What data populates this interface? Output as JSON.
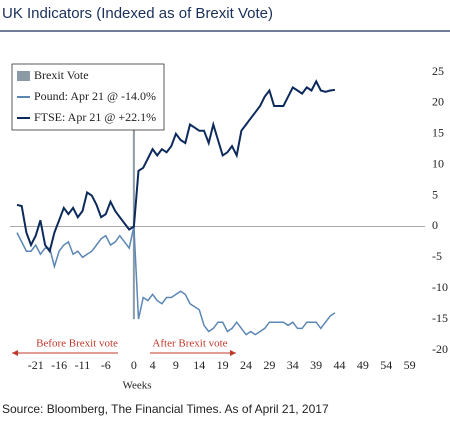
{
  "chart_data": {
    "type": "line",
    "title": "UK Indicators (Indexed as of Brexit Vote)",
    "x_label": "Weeks",
    "source": "Source: Bloomberg, The Financial Times. As of April 21, 2017",
    "annotations": [
      "Before Brexit vote",
      "After Brexit vote"
    ],
    "x": [
      -25,
      -24,
      -23,
      -22,
      -21,
      -20,
      -19,
      -18,
      -17,
      -16,
      -15,
      -14,
      -13,
      -12,
      -11,
      -10,
      -9,
      -8,
      -7,
      -6,
      -5,
      -4,
      -3,
      -2,
      -1,
      0,
      1,
      2,
      3,
      4,
      5,
      6,
      7,
      8,
      9,
      10,
      11,
      12,
      13,
      14,
      15,
      16,
      17,
      18,
      19,
      20,
      21,
      22,
      23,
      24,
      25,
      26,
      27,
      28,
      29,
      30,
      31,
      32,
      33,
      34,
      35,
      36,
      37,
      38,
      39,
      40,
      41,
      42,
      43
    ],
    "series": [
      {
        "name": "Brexit Vote",
        "color": "#8c9aa5",
        "vline_x": 0
      },
      {
        "name": "Pound: Apr 21 @ -14.0%",
        "color": "#5b87b5",
        "values": [
          -1,
          -2.5,
          -4,
          -4,
          -3,
          -4.5,
          -3.5,
          -3.5,
          -6.5,
          -4,
          -3,
          -2.5,
          -4.5,
          -4,
          -5,
          -4.5,
          -4,
          -3,
          -2,
          -1.5,
          -3,
          -2.5,
          -1.5,
          -2.5,
          -3.5,
          0,
          -15,
          -11.5,
          -12,
          -11,
          -12,
          -12.5,
          -11.5,
          -11.5,
          -11,
          -10.5,
          -11,
          -12.5,
          -13,
          -13.5,
          -16,
          -17,
          -16.5,
          -15.5,
          -15.5,
          -17,
          -16.5,
          -15.5,
          -16.5,
          -17.5,
          -17,
          -17.5,
          -17,
          -16.5,
          -15.5,
          -15.5,
          -15.5,
          -15.5,
          -16,
          -15.5,
          -16.5,
          -16.5,
          -15.5,
          -15.5,
          -15.5,
          -16.5,
          -15.5,
          -14.5,
          -14
        ]
      },
      {
        "name": "FTSE: Apr 21 @ +22.1%",
        "color": "#0d2a5c",
        "values": [
          3.5,
          3.3,
          -1,
          -3,
          -1.5,
          1,
          -3,
          -4,
          -1,
          1,
          3,
          2,
          3,
          1.5,
          2.5,
          5.5,
          5,
          3.5,
          1.5,
          2,
          4,
          2.5,
          1.5,
          0.5,
          -0.5,
          0,
          9,
          9.5,
          11,
          12.5,
          11.5,
          12.5,
          12,
          13,
          15,
          14,
          13.5,
          16.5,
          16,
          15.5,
          15.5,
          13.5,
          16.5,
          14,
          11.5,
          12,
          13,
          11.5,
          15.5,
          16.5,
          17.5,
          18.5,
          19.5,
          21,
          22,
          19.5,
          19.5,
          19.5,
          21,
          22.5,
          22,
          21.5,
          22.5,
          22,
          23.5,
          22,
          21.8,
          22,
          22.1
        ]
      }
    ],
    "xlim": [
      -26.5,
      61
    ],
    "xticks": [
      -21,
      -16,
      -11,
      -6,
      0,
      4,
      9,
      14,
      19,
      24,
      29,
      34,
      39,
      44,
      49,
      54,
      59
    ],
    "ylim": [
      -20,
      25
    ],
    "yticks": [
      25,
      20,
      15,
      10,
      5,
      0,
      -5,
      -10,
      -15,
      -20
    ]
  }
}
